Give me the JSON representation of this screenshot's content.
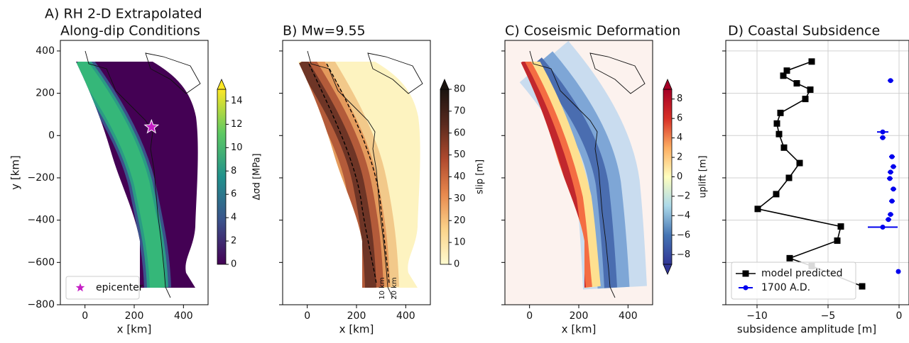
{
  "chart_data": [
    {
      "type": "map",
      "title_lines": [
        "A) RH 2-D Extrapolated",
        "Along-dip Conditions"
      ],
      "xlabel": "x [km]",
      "ylabel": "y [km]",
      "xlim": [
        -100,
        500
      ],
      "ylim": [
        -800,
        450
      ],
      "xticks": [
        0,
        200,
        400
      ],
      "yticks": [
        {
          "value": -800,
          "label": "−800"
        },
        {
          "value": -600,
          "label": "−600"
        },
        {
          "value": -400,
          "label": "−400"
        },
        {
          "value": -200,
          "label": "−200"
        },
        0,
        200,
        400
      ],
      "colorbar": {
        "label": "Δσd [MPa]",
        "lim": [
          0,
          15
        ],
        "ticks": [
          0,
          2,
          4,
          6,
          8,
          10,
          12,
          14
        ],
        "colormap": "viridis",
        "extend": "max"
      },
      "series": [
        {
          "name": "epicenter",
          "color": "#c51fc5",
          "x": [
            270
          ],
          "y": [
            40
          ]
        }
      ],
      "legend": "lower left"
    },
    {
      "type": "map",
      "title_lines": [
        "B) Mw=9.55"
      ],
      "xlabel": "x [km]",
      "xlim": [
        -100,
        500
      ],
      "xticks": [
        0,
        200,
        400
      ],
      "colorbar": {
        "label": "slip [m]",
        "lim": [
          0,
          80
        ],
        "ticks": [
          0,
          10,
          20,
          30,
          40,
          50,
          60,
          70,
          80
        ],
        "colormap": "slip",
        "extend": "max"
      },
      "annotations": [
        "10 km",
        "20 km"
      ]
    },
    {
      "type": "map",
      "title_lines": [
        "C) Coseismic Deformation"
      ],
      "xlabel": "x [km]",
      "xlim": [
        -100,
        500
      ],
      "xticks": [
        0,
        200,
        400
      ],
      "colorbar": {
        "label": "uplift [m]",
        "lim": [
          -9,
          9
        ],
        "ticks": [
          {
            "value": -8,
            "label": "−8"
          },
          {
            "value": -6,
            "label": "−6"
          },
          {
            "value": -4,
            "label": "−4"
          },
          {
            "value": -2,
            "label": "−2"
          },
          0,
          2,
          4,
          6,
          8
        ],
        "colormap": "RdYlBu_r",
        "extend": "both"
      }
    },
    {
      "type": "line",
      "title_lines": [
        "D) Coastal Subsidence"
      ],
      "xlabel": "subsidence amplitude [m]",
      "xlim": [
        -12.2,
        0.7
      ],
      "xticks": [
        {
          "value": -10,
          "label": "−10"
        },
        {
          "value": -5,
          "label": "−5"
        },
        0
      ],
      "grid": true,
      "legend": "lower left",
      "series": [
        {
          "name": "model predicted",
          "color": "#000000",
          "marker": "square",
          "x": [
            -6.15,
            -7.9,
            -8.15,
            -7.2,
            -6.25,
            -6.6,
            -8.35,
            -8.6,
            -8.45,
            -8.1,
            -7.0,
            -7.75,
            -8.65,
            -9.95,
            -4.1,
            -4.35,
            -7.7,
            -6.15,
            -2.6
          ],
          "y": [
            350,
            307,
            283,
            247,
            217,
            173,
            107,
            57,
            7,
            -57,
            -130,
            -200,
            -277,
            -347,
            -430,
            -497,
            -580,
            -617,
            -713
          ]
        },
        {
          "name": "1700 A.D.",
          "color": "#0000ee",
          "marker": "circle",
          "x": [
            -0.6,
            -1.15,
            -1.15,
            -0.5,
            -0.4,
            -0.6,
            -0.65,
            -0.4,
            -0.5,
            -0.6,
            -0.75,
            -1.15,
            -0.05
          ],
          "y": [
            260,
            17,
            -10,
            -100,
            -147,
            -173,
            -203,
            -253,
            -310,
            -373,
            -397,
            -433,
            -643
          ],
          "xerr": [
            0.2,
            0.4,
            0.2,
            0.2,
            0.2,
            0.2,
            0.2,
            0.2,
            0.2,
            0.2,
            0.2,
            1.05,
            0.1
          ]
        }
      ]
    }
  ]
}
